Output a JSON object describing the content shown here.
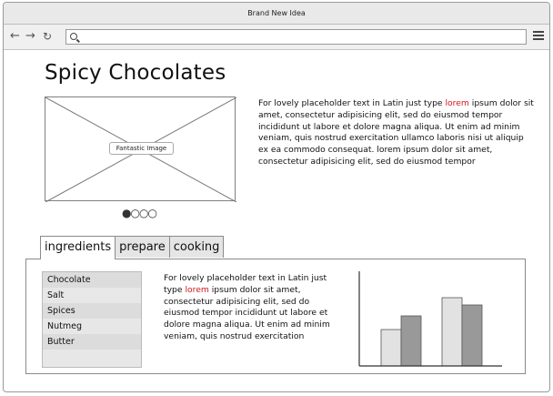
{
  "window": {
    "title": "Brand New Idea"
  },
  "page": {
    "title": "Spicy Chocolates",
    "image_caption": "Fantastic Image",
    "carousel": {
      "total": 4,
      "active": 1
    },
    "intro": {
      "before": "For lovely placeholder text in Latin just type ",
      "highlight": "lorem",
      "after": " ipsum dolor sit amet, consectetur adipisicing elit, sed do eiusmod tempor incididunt ut labore et dolore magna aliqua. Ut enim ad minim veniam, quis nostrud exercitation ullamco laboris nisi ut aliquip ex ea commodo consequat. lorem ipsum dolor sit amet, consectetur adipisicing elit, sed do eiusmod tempor"
    },
    "tabs": [
      "ingredients",
      "prepare",
      "cooking"
    ],
    "ingredients": [
      "Chocolate",
      "Salt",
      "Spices",
      "Nutmeg",
      "Butter"
    ],
    "panel_copy": {
      "before": "For lovely placeholder text in Latin just type ",
      "highlight": "lorem",
      "after": " ipsum dolor sit amet, consectetur adipisicing elit, sed do eiusmod tempor incididunt ut labore et dolore magna aliqua. Ut enim ad minim veniam, quis nostrud exercitation"
    }
  },
  "icons": {
    "back": "back-arrow-icon",
    "forward": "forward-arrow-icon",
    "reload": "reload-icon",
    "search": "search-icon",
    "menu": "menu-icon"
  },
  "colors": {
    "highlight": "#d0181f",
    "bar_light": "#e2e2e2",
    "bar_dark": "#999999"
  },
  "chart_data": {
    "type": "bar",
    "categories": [
      "",
      ""
    ],
    "series": [
      {
        "values": [
          40,
          75
        ]
      },
      {
        "values": [
          55,
          67
        ]
      }
    ],
    "title": "",
    "xlabel": "",
    "ylabel": "",
    "ylim": [
      0,
      100
    ]
  }
}
